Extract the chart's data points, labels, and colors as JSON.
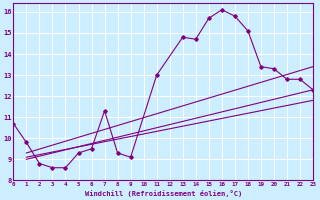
{
  "xlabel": "Windchill (Refroidissement éolien,°C)",
  "bg_color": "#cceeff",
  "line_color": "#800080",
  "grid_color": "#ffffff",
  "xlim": [
    0,
    23
  ],
  "ylim": [
    8,
    16.4
  ],
  "xticks": [
    0,
    1,
    2,
    3,
    4,
    5,
    6,
    7,
    8,
    9,
    10,
    11,
    12,
    13,
    14,
    15,
    16,
    17,
    18,
    19,
    20,
    21,
    22,
    23
  ],
  "yticks": [
    8,
    9,
    10,
    11,
    12,
    13,
    14,
    15,
    16
  ],
  "main_x": [
    0,
    1,
    2,
    3,
    4,
    5,
    6,
    7,
    8,
    9,
    11,
    13,
    14,
    15,
    16,
    17,
    18,
    19,
    20,
    21,
    22,
    23
  ],
  "main_y": [
    10.7,
    9.8,
    8.8,
    8.6,
    8.6,
    9.3,
    9.5,
    11.3,
    9.3,
    9.1,
    13.0,
    14.8,
    14.7,
    15.7,
    16.1,
    15.8,
    15.1,
    13.4,
    13.3,
    12.8,
    12.8,
    12.3
  ],
  "line1_x": [
    1,
    23
  ],
  "line1_y": [
    9.3,
    13.4
  ],
  "line2_x": [
    1,
    23
  ],
  "line2_y": [
    9.0,
    12.3
  ],
  "line3_x": [
    1,
    23
  ],
  "line3_y": [
    9.1,
    11.8
  ]
}
